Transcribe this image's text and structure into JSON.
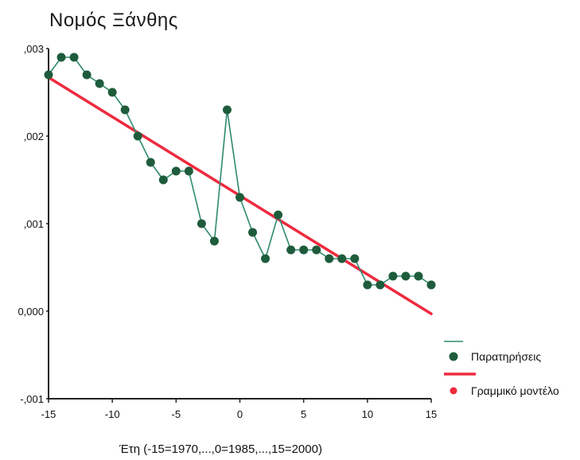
{
  "chart_data": {
    "type": "line",
    "title": "Νομός Ξάνθης",
    "xlabel": "Έτη (-15=1970,...,0=1985,...,15=2000)",
    "ylabel": "",
    "xlim": [
      -15,
      15
    ],
    "ylim": [
      -0.001,
      0.003
    ],
    "x_ticks": [
      -15,
      -10,
      -5,
      0,
      5,
      10,
      15
    ],
    "x_tick_labels": [
      "-15",
      "-10",
      "-5",
      "0",
      "5",
      "10",
      "15"
    ],
    "y_ticks": [
      -0.001,
      0,
      0.001,
      0.002,
      0.003
    ],
    "y_tick_labels": [
      "-,001",
      "0,000",
      ",001",
      ",002",
      ",003"
    ],
    "grid": false,
    "legend_position": "right",
    "series": [
      {
        "name": "Παρατηρήσεις",
        "color": "#1e5c3c",
        "line_color": "#2e8a6e",
        "x": [
          -15,
          -14,
          -13,
          -12,
          -11,
          -10,
          -9,
          -8,
          -7,
          -6,
          -5,
          -4,
          -3,
          -2,
          -1,
          0,
          1,
          2,
          3,
          4,
          5,
          6,
          7,
          8,
          9,
          10,
          11,
          12,
          13,
          14,
          15
        ],
        "values": [
          0.0027,
          0.0029,
          0.0029,
          0.0027,
          0.0026,
          0.0025,
          0.0023,
          0.002,
          0.0017,
          0.0015,
          0.0016,
          0.0016,
          0.001,
          0.0008,
          0.0023,
          0.0013,
          0.0009,
          0.0006,
          0.0011,
          0.0007,
          0.0007,
          0.0007,
          0.0006,
          0.0006,
          0.0006,
          0.0003,
          0.0003,
          0.0004,
          0.0004,
          0.0004,
          0.0003
        ]
      },
      {
        "name": "Γραμμικό μοντέλο",
        "color": "#ee2a3e",
        "x": [
          -15,
          15
        ],
        "values": [
          0.00267,
          -3e-05
        ]
      }
    ]
  }
}
